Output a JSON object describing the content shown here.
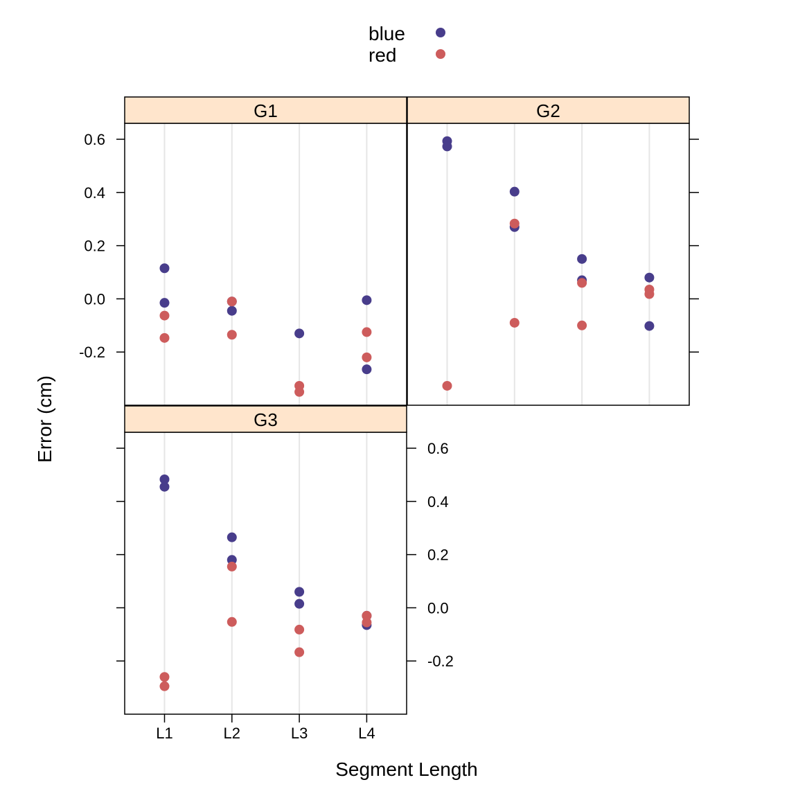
{
  "chart_data": {
    "type": "scatter",
    "xlabel": "Segment Length",
    "ylabel": "Error (cm)",
    "categories": [
      "L1",
      "L2",
      "L3",
      "L4"
    ],
    "ylim": [
      -0.4,
      0.66
    ],
    "yticks": [
      -0.2,
      0.0,
      0.2,
      0.4,
      0.6
    ],
    "ytick_labels": [
      "-0.2",
      "0.0",
      "0.2",
      "0.4",
      "0.6"
    ],
    "grid": "vertical lines at categories",
    "legend": {
      "placement": "top",
      "entries": [
        {
          "name": "blue",
          "color": "#483D8B"
        },
        {
          "name": "red",
          "color": "#CD5C5C"
        }
      ]
    },
    "strip_color": "#FFE5CC",
    "panels": [
      {
        "name": "G1",
        "series": [
          {
            "name": "blue",
            "points": [
              [
                "L1",
                0.115
              ],
              [
                "L1",
                -0.015
              ],
              [
                "L2",
                -0.045
              ],
              [
                "L2",
                -0.01
              ],
              [
                "L3",
                -0.13
              ],
              [
                "L4",
                -0.005
              ],
              [
                "L4",
                -0.265
              ]
            ]
          },
          {
            "name": "red",
            "points": [
              [
                "L1",
                -0.063
              ],
              [
                "L1",
                -0.147
              ],
              [
                "L2",
                -0.01
              ],
              [
                "L2",
                -0.135
              ],
              [
                "L3",
                -0.327
              ],
              [
                "L3",
                -0.35
              ],
              [
                "L4",
                -0.125
              ],
              [
                "L4",
                -0.22
              ]
            ]
          }
        ]
      },
      {
        "name": "G2",
        "series": [
          {
            "name": "blue",
            "points": [
              [
                "L1",
                0.593
              ],
              [
                "L1",
                0.573
              ],
              [
                "L2",
                0.403
              ],
              [
                "L2",
                0.27
              ],
              [
                "L3",
                0.15
              ],
              [
                "L3",
                0.07
              ],
              [
                "L4",
                0.08
              ],
              [
                "L4",
                -0.102
              ]
            ]
          },
          {
            "name": "red",
            "points": [
              [
                "L1",
                -0.327
              ],
              [
                "L2",
                0.283
              ],
              [
                "L2",
                -0.09
              ],
              [
                "L3",
                0.06
              ],
              [
                "L3",
                -0.1
              ],
              [
                "L4",
                0.035
              ],
              [
                "L4",
                0.018
              ]
            ]
          }
        ]
      },
      {
        "name": "G3",
        "series": [
          {
            "name": "blue",
            "points": [
              [
                "L1",
                0.483
              ],
              [
                "L1",
                0.455
              ],
              [
                "L2",
                0.265
              ],
              [
                "L2",
                0.18
              ],
              [
                "L3",
                0.06
              ],
              [
                "L3",
                0.015
              ],
              [
                "L4",
                -0.03
              ],
              [
                "L4",
                -0.065
              ]
            ]
          },
          {
            "name": "red",
            "points": [
              [
                "L1",
                -0.26
              ],
              [
                "L1",
                -0.295
              ],
              [
                "L2",
                0.155
              ],
              [
                "L2",
                -0.053
              ],
              [
                "L3",
                -0.082
              ],
              [
                "L3",
                -0.167
              ],
              [
                "L4",
                -0.03
              ],
              [
                "L4",
                -0.055
              ]
            ]
          }
        ]
      }
    ]
  }
}
